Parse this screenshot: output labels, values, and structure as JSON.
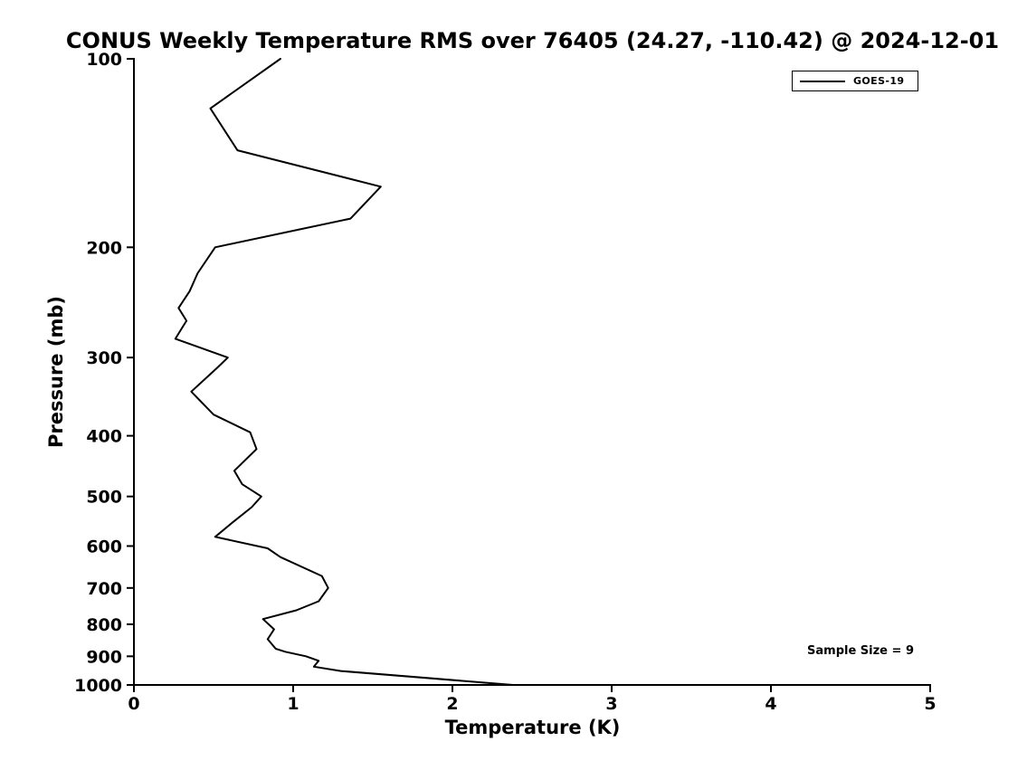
{
  "title": "CONUS Weekly Temperature RMS over 76405 (24.27, -110.42) @ 2024-12-01",
  "annotations": {
    "sample_size": "Sample Size = 9"
  },
  "legend": {
    "position": "top-right",
    "entries": [
      {
        "label": "GOES-19",
        "color": "#000000",
        "line_style": "solid"
      }
    ]
  },
  "colors": {
    "line": "#000000",
    "text": "#000000",
    "background": "#ffffff"
  },
  "chart_data": {
    "type": "line",
    "title": "CONUS Weekly Temperature RMS over 76405 (24.27, -110.42) @ 2024-12-01",
    "xlabel": "Temperature (K)",
    "ylabel": "Pressure (mb)",
    "xlim": [
      0,
      5
    ],
    "ylim": [
      100,
      1000
    ],
    "y_scale": "log",
    "y_axis_direction": "inverted (100 mb at top, 1000 mb at bottom)",
    "grid": false,
    "legend_position": "top-right",
    "x_ticks": [
      0,
      1,
      2,
      3,
      4,
      5
    ],
    "y_ticks": [
      100,
      200,
      300,
      400,
      500,
      600,
      700,
      800,
      900,
      1000
    ],
    "series": [
      {
        "name": "GOES-19",
        "color": "#000000",
        "pressure_mb": [
          100,
          120,
          140,
          160,
          180,
          200,
          220,
          235,
          250,
          262,
          280,
          300,
          312,
          340,
          370,
          395,
          420,
          455,
          478,
          500,
          520,
          550,
          580,
          605,
          625,
          670,
          700,
          735,
          760,
          785,
          815,
          845,
          875,
          885,
          900,
          915,
          935,
          950,
          1000
        ],
        "temperature_rms_k": [
          0.92,
          0.48,
          0.65,
          1.55,
          1.36,
          0.51,
          0.4,
          0.35,
          0.28,
          0.33,
          0.26,
          0.59,
          0.52,
          0.36,
          0.5,
          0.73,
          0.77,
          0.63,
          0.68,
          0.8,
          0.74,
          0.62,
          0.51,
          0.84,
          0.92,
          1.18,
          1.22,
          1.16,
          1.02,
          0.81,
          0.88,
          0.84,
          0.89,
          0.95,
          1.08,
          1.16,
          1.13,
          1.3,
          2.38
        ]
      }
    ]
  }
}
